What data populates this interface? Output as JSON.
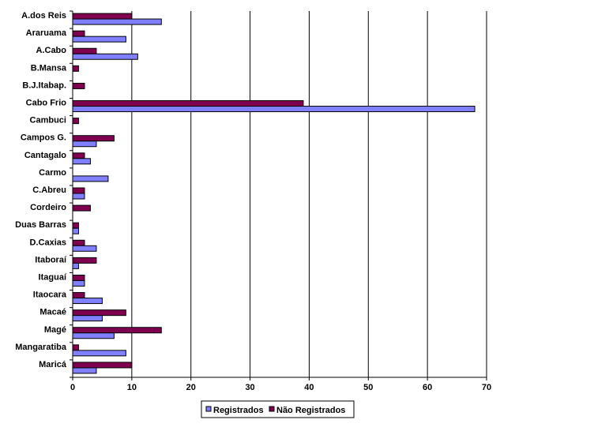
{
  "chart_data": {
    "type": "bar",
    "orientation": "horizontal",
    "title": "",
    "xlabel": "",
    "ylabel": "",
    "xlim": [
      0,
      70
    ],
    "xticks": [
      0,
      10,
      20,
      30,
      40,
      50,
      60,
      70
    ],
    "grid": true,
    "legend_position": "bottom",
    "categories": [
      "A.dos Reis",
      "Araruama",
      "A.Cabo",
      "B.Mansa",
      "B.J.Itabap.",
      "Cabo Frio",
      "Cambuci",
      "Campos G.",
      "Cantagalo",
      "Carmo",
      "C.Abreu",
      "Cordeiro",
      "Duas Barras",
      "D.Caxias",
      "Itaboraí",
      "Itaguaí",
      "Itaocara",
      "Macaé",
      "Magé",
      "Mangaratiba",
      "Maricá"
    ],
    "series": [
      {
        "name": "Registrados",
        "color": "#8080ff",
        "values": [
          15,
          9,
          11,
          0,
          0,
          68,
          0,
          4,
          3,
          6,
          2,
          0,
          1,
          4,
          1,
          2,
          5,
          5,
          7,
          9,
          4
        ]
      },
      {
        "name": "Não Registrados",
        "color": "#800050",
        "values": [
          10,
          2,
          4,
          1,
          2,
          39,
          1,
          7,
          2,
          0,
          2,
          3,
          1,
          2,
          4,
          2,
          2,
          9,
          15,
          1,
          10
        ]
      }
    ]
  }
}
